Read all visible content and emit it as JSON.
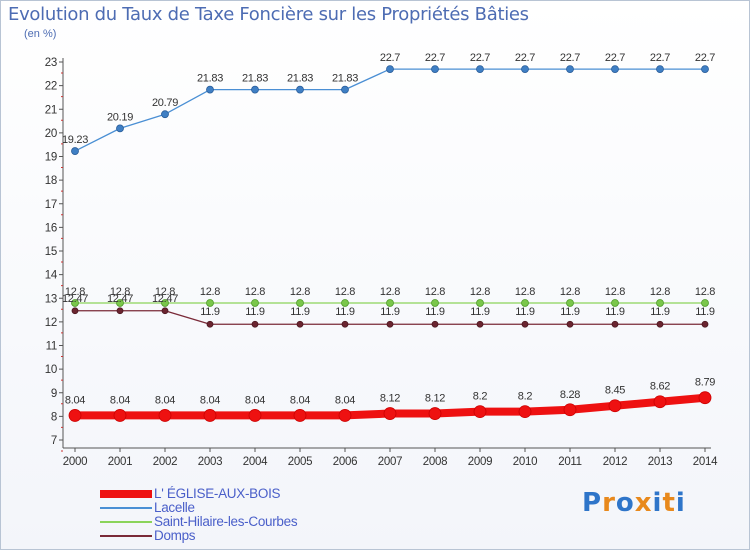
{
  "title": "Evolution du Taux de Taxe Foncière sur les Propriétés Bâties",
  "unit_label": "(en %)",
  "logo": {
    "letters": [
      "P",
      "r",
      "o",
      "x",
      "i",
      "t",
      "i"
    ],
    "colors": [
      "#2e75c9",
      "#e8891c",
      "#2e75c9",
      "#e8891c",
      "#2e75c9",
      "#e8891c",
      "#2e75c9"
    ]
  },
  "chart_data": {
    "type": "line",
    "title": "Evolution du Taux de Taxe Foncière sur les Propriétés Bâties",
    "xlabel": "",
    "ylabel": "(en %)",
    "x": [
      "2000",
      "2001",
      "2002",
      "2003",
      "2004",
      "2005",
      "2006",
      "2007",
      "2008",
      "2009",
      "2010",
      "2011",
      "2012",
      "2013",
      "2014"
    ],
    "ylim": [
      7,
      23
    ],
    "yticks": [
      "7",
      "8",
      "9",
      "10",
      "11",
      "12",
      "13",
      "14",
      "15",
      "16",
      "17",
      "18",
      "19",
      "20",
      "21",
      "22",
      "23"
    ],
    "grid": false,
    "legend_position": "bottom-left",
    "series": [
      {
        "name": "Lacelle",
        "color": "#4a8fd4",
        "values": [
          19.23,
          20.19,
          20.79,
          21.83,
          21.83,
          21.83,
          21.83,
          22.7,
          22.7,
          22.7,
          22.7,
          22.7,
          22.7,
          22.7,
          22.7
        ],
        "labels": [
          "19.23",
          "20.19",
          "20.79",
          "21.83",
          "21.83",
          "21.83",
          "21.83",
          "22.7",
          "22.7",
          "22.7",
          "22.7",
          "22.7",
          "22.7",
          "22.7",
          "22.7"
        ]
      },
      {
        "name": "Saint-Hilaire-les-Courbes",
        "color": "#8bd45a",
        "values": [
          12.8,
          12.8,
          12.8,
          12.8,
          12.8,
          12.8,
          12.8,
          12.8,
          12.8,
          12.8,
          12.8,
          12.8,
          12.8,
          12.8,
          12.8
        ],
        "labels": [
          "12.8",
          "12.8",
          "12.8",
          "12.8",
          "12.8",
          "12.8",
          "12.8",
          "12.8",
          "12.8",
          "12.8",
          "12.8",
          "12.8",
          "12.8",
          "12.8",
          "12.8"
        ]
      },
      {
        "name": "Domps",
        "color": "#7a2a38",
        "values": [
          12.47,
          12.47,
          12.47,
          11.9,
          11.9,
          11.9,
          11.9,
          11.9,
          11.9,
          11.9,
          11.9,
          11.9,
          11.9,
          11.9,
          11.9
        ],
        "labels": [
          "12.47",
          "12.47",
          "12.47",
          "11.9",
          "11.9",
          "11.9",
          "11.9",
          "11.9",
          "11.9",
          "11.9",
          "11.9",
          "11.9",
          "11.9",
          "11.9",
          "11.9"
        ]
      },
      {
        "name": "L' ÉGLISE-AUX-BOIS",
        "color": "#ee1111",
        "values": [
          8.04,
          8.04,
          8.04,
          8.04,
          8.04,
          8.04,
          8.04,
          8.12,
          8.12,
          8.2,
          8.2,
          8.28,
          8.45,
          8.62,
          8.79
        ],
        "labels": [
          "8.04",
          "8.04",
          "8.04",
          "8.04",
          "8.04",
          "8.04",
          "8.04",
          "8.12",
          "8.12",
          "8.2",
          "8.2",
          "8.28",
          "8.45",
          "8.62",
          "8.79"
        ]
      }
    ],
    "legend": [
      {
        "name": "L' ÉGLISE-AUX-BOIS",
        "color": "#ee1111"
      },
      {
        "name": "Lacelle",
        "color": "#4a8fd4"
      },
      {
        "name": "Saint-Hilaire-les-Courbes",
        "color": "#8bd45a"
      },
      {
        "name": "Domps",
        "color": "#7a2a38"
      }
    ]
  }
}
